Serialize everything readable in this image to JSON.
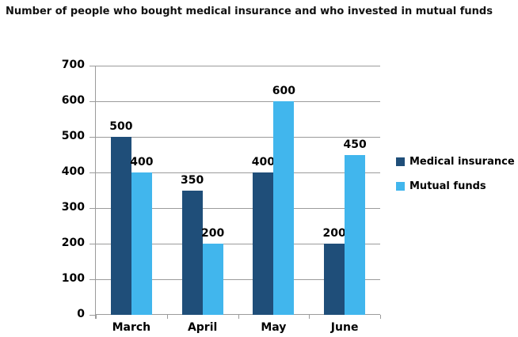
{
  "title": "Number of people who bought medical insurance and who invested in mutual funds",
  "colors": {
    "background": "#FFFFFF",
    "text": "#000000",
    "gridline": "#9B9B9B",
    "axis": "#9B9B9B",
    "medical_insurance": "#1F4E79",
    "mutual_funds": "#41B6ED"
  },
  "legend": {
    "items": [
      {
        "label": "Medical insurance",
        "color": "#1F4E79"
      },
      {
        "label": "Mutual funds",
        "color": "#41B6ED"
      }
    ]
  },
  "chart_data": {
    "type": "bar",
    "title": "Number of people who bought medical insurance and who invested in mutual funds",
    "categories": [
      "March",
      "April",
      "May",
      "June"
    ],
    "series": [
      {
        "name": "Medical insurance",
        "color": "#1F4E79",
        "values": [
          500,
          350,
          400,
          200
        ]
      },
      {
        "name": "Mutual funds",
        "color": "#41B6ED",
        "values": [
          400,
          200,
          600,
          450
        ]
      }
    ],
    "xlabel": "",
    "ylabel": "",
    "ylim": [
      0,
      700
    ],
    "ytick_interval": 100,
    "yticks": [
      0,
      100,
      200,
      300,
      400,
      500,
      600,
      700
    ],
    "grid": true,
    "data_labels": true,
    "legend_position": "right"
  }
}
